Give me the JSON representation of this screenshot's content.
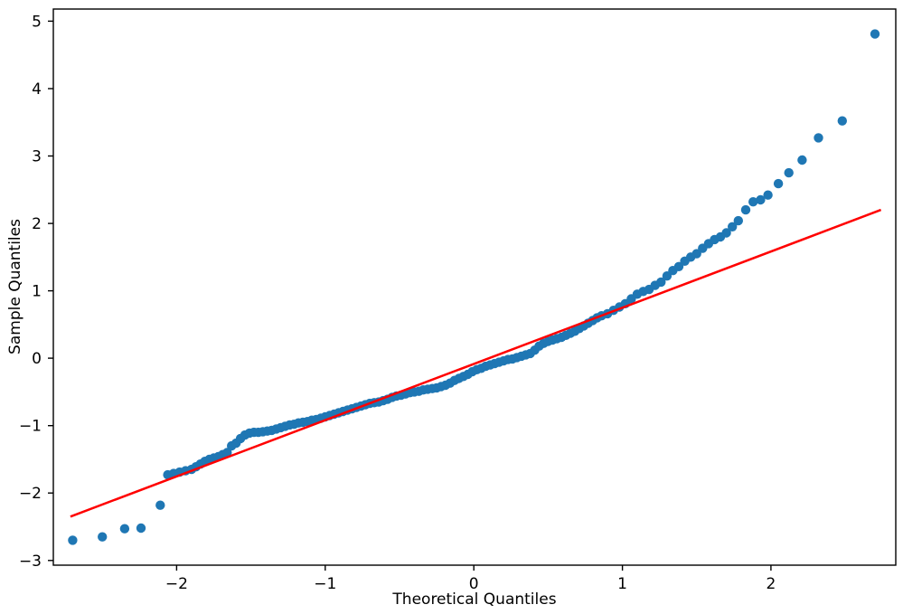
{
  "chart_data": {
    "type": "scatter",
    "title": "",
    "xlabel": "Theoretical Quantiles",
    "ylabel": "Sample Quantiles",
    "xlim": [
      -2.83,
      2.84
    ],
    "ylim": [
      -3.07,
      5.18
    ],
    "xticks": [
      -2,
      -1,
      0,
      1,
      2
    ],
    "xtick_labels": [
      "−2",
      "−1",
      "0",
      "1",
      "2"
    ],
    "yticks": [
      -3,
      -2,
      -1,
      0,
      1,
      2,
      3,
      4,
      5
    ],
    "ytick_labels": [
      "−3",
      "−2",
      "−1",
      "0",
      "1",
      "2",
      "3",
      "4",
      "5"
    ],
    "grid": false,
    "legend_position": "none",
    "axis_color": "#000000",
    "series": [
      {
        "name": "sample-quantile-points",
        "type": "scatter",
        "color": "#1f77b4",
        "marker_radius": 5.2,
        "points": [
          [
            -2.7,
            -2.7
          ],
          [
            -2.5,
            -2.65
          ],
          [
            -2.35,
            -2.53
          ],
          [
            -2.24,
            -2.52
          ],
          [
            -2.11,
            -2.18
          ],
          [
            -2.06,
            -1.73
          ],
          [
            -2.02,
            -1.71
          ],
          [
            -1.98,
            -1.69
          ],
          [
            -1.94,
            -1.67
          ],
          [
            -1.9,
            -1.65
          ],
          [
            -1.87,
            -1.61
          ],
          [
            -1.84,
            -1.57
          ],
          [
            -1.81,
            -1.53
          ],
          [
            -1.78,
            -1.5
          ],
          [
            -1.75,
            -1.48
          ],
          [
            -1.72,
            -1.46
          ],
          [
            -1.69,
            -1.43
          ],
          [
            -1.66,
            -1.4
          ],
          [
            -1.63,
            -1.3
          ],
          [
            -1.6,
            -1.26
          ],
          [
            -1.57,
            -1.19
          ],
          [
            -1.54,
            -1.14
          ],
          [
            -1.51,
            -1.11
          ],
          [
            -1.48,
            -1.1
          ],
          [
            -1.45,
            -1.1
          ],
          [
            -1.42,
            -1.09
          ],
          [
            -1.39,
            -1.08
          ],
          [
            -1.36,
            -1.07
          ],
          [
            -1.33,
            -1.05
          ],
          [
            -1.3,
            -1.03
          ],
          [
            -1.27,
            -1.01
          ],
          [
            -1.24,
            -0.99
          ],
          [
            -1.21,
            -0.98
          ],
          [
            -1.18,
            -0.96
          ],
          [
            -1.15,
            -0.95
          ],
          [
            -1.12,
            -0.94
          ],
          [
            -1.09,
            -0.92
          ],
          [
            -1.06,
            -0.91
          ],
          [
            -1.03,
            -0.89
          ],
          [
            -1.0,
            -0.87
          ],
          [
            -0.97,
            -0.85
          ],
          [
            -0.94,
            -0.83
          ],
          [
            -0.91,
            -0.81
          ],
          [
            -0.88,
            -0.79
          ],
          [
            -0.85,
            -0.77
          ],
          [
            -0.82,
            -0.75
          ],
          [
            -0.79,
            -0.73
          ],
          [
            -0.76,
            -0.71
          ],
          [
            -0.73,
            -0.69
          ],
          [
            -0.7,
            -0.67
          ],
          [
            -0.67,
            -0.66
          ],
          [
            -0.64,
            -0.65
          ],
          [
            -0.61,
            -0.63
          ],
          [
            -0.58,
            -0.61
          ],
          [
            -0.55,
            -0.58
          ],
          [
            -0.52,
            -0.56
          ],
          [
            -0.49,
            -0.55
          ],
          [
            -0.46,
            -0.53
          ],
          [
            -0.43,
            -0.51
          ],
          [
            -0.4,
            -0.5
          ],
          [
            -0.37,
            -0.49
          ],
          [
            -0.34,
            -0.47
          ],
          [
            -0.31,
            -0.46
          ],
          [
            -0.28,
            -0.45
          ],
          [
            -0.25,
            -0.44
          ],
          [
            -0.22,
            -0.42
          ],
          [
            -0.19,
            -0.4
          ],
          [
            -0.16,
            -0.37
          ],
          [
            -0.13,
            -0.33
          ],
          [
            -0.1,
            -0.3
          ],
          [
            -0.07,
            -0.27
          ],
          [
            -0.04,
            -0.24
          ],
          [
            -0.01,
            -0.2
          ],
          [
            0.02,
            -0.17
          ],
          [
            0.05,
            -0.15
          ],
          [
            0.08,
            -0.12
          ],
          [
            0.11,
            -0.1
          ],
          [
            0.14,
            -0.08
          ],
          [
            0.17,
            -0.06
          ],
          [
            0.2,
            -0.04
          ],
          [
            0.23,
            -0.02
          ],
          [
            0.26,
            -0.01
          ],
          [
            0.29,
            0.01
          ],
          [
            0.32,
            0.03
          ],
          [
            0.35,
            0.05
          ],
          [
            0.38,
            0.07
          ],
          [
            0.41,
            0.12
          ],
          [
            0.44,
            0.18
          ],
          [
            0.47,
            0.22
          ],
          [
            0.5,
            0.25
          ],
          [
            0.53,
            0.27
          ],
          [
            0.56,
            0.29
          ],
          [
            0.59,
            0.31
          ],
          [
            0.62,
            0.34
          ],
          [
            0.65,
            0.37
          ],
          [
            0.68,
            0.4
          ],
          [
            0.71,
            0.44
          ],
          [
            0.74,
            0.48
          ],
          [
            0.77,
            0.52
          ],
          [
            0.8,
            0.56
          ],
          [
            0.83,
            0.6
          ],
          [
            0.86,
            0.63
          ],
          [
            0.9,
            0.66
          ],
          [
            0.94,
            0.71
          ],
          [
            0.98,
            0.76
          ],
          [
            1.02,
            0.81
          ],
          [
            1.06,
            0.88
          ],
          [
            1.1,
            0.95
          ],
          [
            1.14,
            0.99
          ],
          [
            1.18,
            1.02
          ],
          [
            1.22,
            1.08
          ],
          [
            1.26,
            1.13
          ],
          [
            1.3,
            1.22
          ],
          [
            1.34,
            1.3
          ],
          [
            1.38,
            1.36
          ],
          [
            1.42,
            1.44
          ],
          [
            1.46,
            1.5
          ],
          [
            1.5,
            1.55
          ],
          [
            1.54,
            1.63
          ],
          [
            1.58,
            1.7
          ],
          [
            1.62,
            1.76
          ],
          [
            1.66,
            1.8
          ],
          [
            1.7,
            1.86
          ],
          [
            1.74,
            1.95
          ],
          [
            1.78,
            2.04
          ],
          [
            1.83,
            2.2
          ],
          [
            1.88,
            2.32
          ],
          [
            1.93,
            2.35
          ],
          [
            1.98,
            2.42
          ],
          [
            2.05,
            2.59
          ],
          [
            2.12,
            2.75
          ],
          [
            2.21,
            2.94
          ],
          [
            2.32,
            3.27
          ],
          [
            2.48,
            3.52
          ],
          [
            2.7,
            4.81
          ]
        ]
      },
      {
        "name": "reference-line",
        "type": "line",
        "color": "#ff0000",
        "width": 2.5,
        "points": [
          [
            -2.715,
            -2.35
          ],
          [
            2.74,
            2.2
          ]
        ]
      }
    ]
  }
}
